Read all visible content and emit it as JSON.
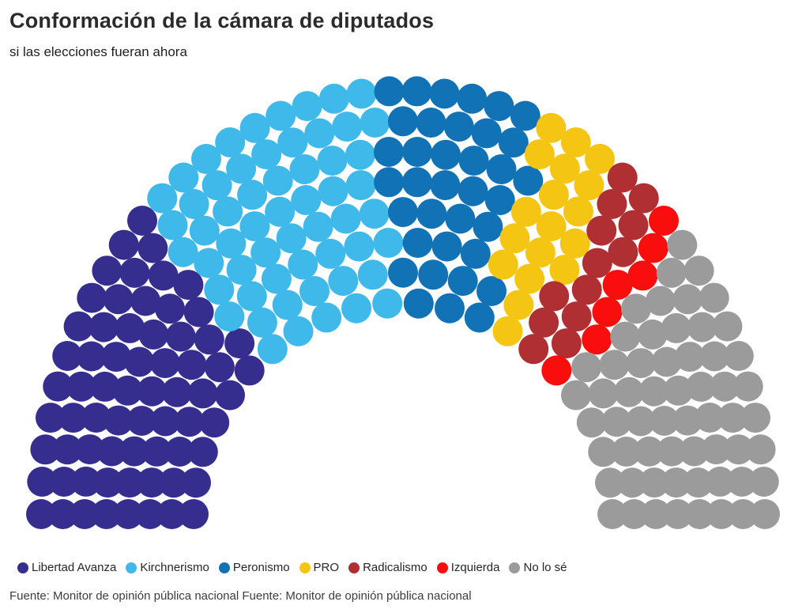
{
  "title": "Conformación de la cámara de diputados",
  "subtitle": "si las elecciones fueran ahora",
  "source_note": "Fuente: Monitor de opinión pública nacional Fuente: Monitor de opinión pública nacional",
  "chart_data": {
    "type": "parliament",
    "title": "Conformación de la cámara de diputados",
    "subtitle": "si las elecciones fueran ahora",
    "total_seats": 257,
    "rows": 8,
    "row_seats": [
      22,
      25,
      28,
      31,
      34,
      36,
      39,
      42
    ],
    "seat_shape": "circle",
    "arc_degrees": 180,
    "legend_position": "bottom",
    "parties": [
      {
        "name": "Libertad Avanza",
        "seats": 67,
        "color": "#362e8e"
      },
      {
        "name": "Kirchnerismo",
        "seats": 57,
        "color": "#3fb8ea"
      },
      {
        "name": "Peronismo",
        "seats": 36,
        "color": "#1173b5"
      },
      {
        "name": "PRO",
        "seats": 18,
        "color": "#f5c514"
      },
      {
        "name": "Radicalismo",
        "seats": 13,
        "color": "#b02f33"
      },
      {
        "name": "Izquierda",
        "seats": 7,
        "color": "#f90d0d"
      },
      {
        "name": "No lo sé",
        "seats": 59,
        "color": "#9b9b9b"
      }
    ]
  }
}
